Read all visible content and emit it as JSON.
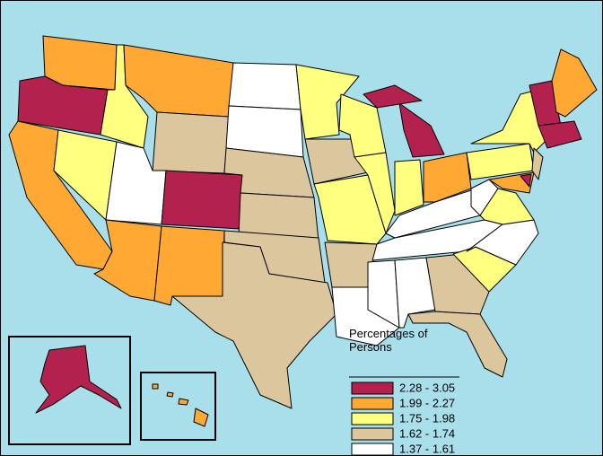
{
  "legend": {
    "title": "Percentages of Persons",
    "items": [
      {
        "label": "2.28 - 3.05",
        "color": "#b3224f"
      },
      {
        "label": "1.99 - 2.27",
        "color": "#ffa833"
      },
      {
        "label": "1.75 - 1.98",
        "color": "#ffff80"
      },
      {
        "label": "1.62 - 1.74",
        "color": "#dcc69e"
      },
      {
        "label": "1.37 - 1.61",
        "color": "#ffffff"
      }
    ]
  }
}
